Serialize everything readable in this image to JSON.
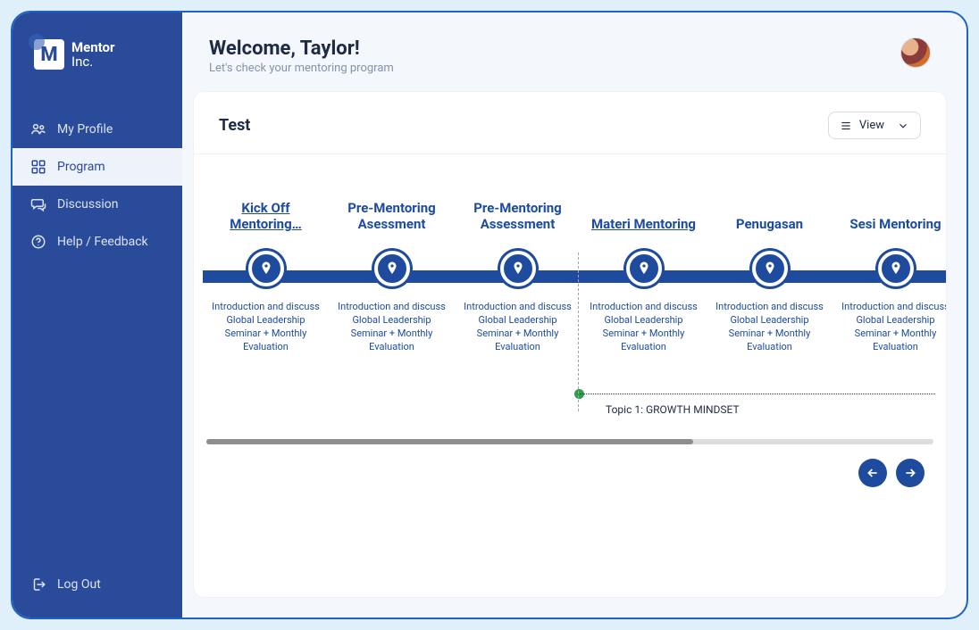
{
  "brand": {
    "mark": "M",
    "line1": "Mentor",
    "line2": "Inc."
  },
  "colors": {
    "outer_bg": "#e0f0fa",
    "shell_bg": "#f4f7fb",
    "shell_border": "#1b62c9",
    "sidebar_bg": "#2a4b9a",
    "sidebar_text": "#dbe3f5",
    "sidebar_active_bg": "#eef2fb",
    "sidebar_active_text": "#2a4b9a",
    "primary": "#1e4b9e",
    "text": "#1f2b43",
    "muted": "#8793ab",
    "border": "#eef0f5",
    "scroll_track": "#dddddd",
    "scroll_thumb": "#8e8e8e",
    "topic_dot": "#2e9e4a"
  },
  "sidebar": {
    "items": [
      {
        "label": "My Profile",
        "icon": "users",
        "active": false
      },
      {
        "label": "Program",
        "icon": "grid",
        "active": true
      },
      {
        "label": "Discussion",
        "icon": "chat",
        "active": false
      },
      {
        "label": "Help / Feedback",
        "icon": "help",
        "active": false
      }
    ],
    "logout_label": "Log Out"
  },
  "header": {
    "title": "Welcome, Taylor!",
    "subtitle": "Let's check your mentoring program"
  },
  "card": {
    "title": "Test",
    "view_label": "View"
  },
  "timeline": {
    "track_color": "#1e4b9e",
    "desc": "Introduction and discuss Global Leadership Seminar + Monthly Evaluation",
    "steps": [
      {
        "title": "Kick Off Mentoring…",
        "underlined": true,
        "current": false
      },
      {
        "title": "Pre-Mentoring Asessment",
        "underlined": false,
        "current": false
      },
      {
        "title": "Pre-Mentoring Assessment",
        "underlined": false,
        "current": false
      },
      {
        "title": "Materi Mentoring",
        "underlined": true,
        "current": true
      },
      {
        "title": "Penugasan",
        "underlined": false,
        "current": false
      },
      {
        "title": "Sesi Mentoring",
        "underlined": false,
        "current": false
      }
    ],
    "topic_label": "Topic 1: GROWTH MINDSET",
    "scroll_progress_pct": 67
  }
}
